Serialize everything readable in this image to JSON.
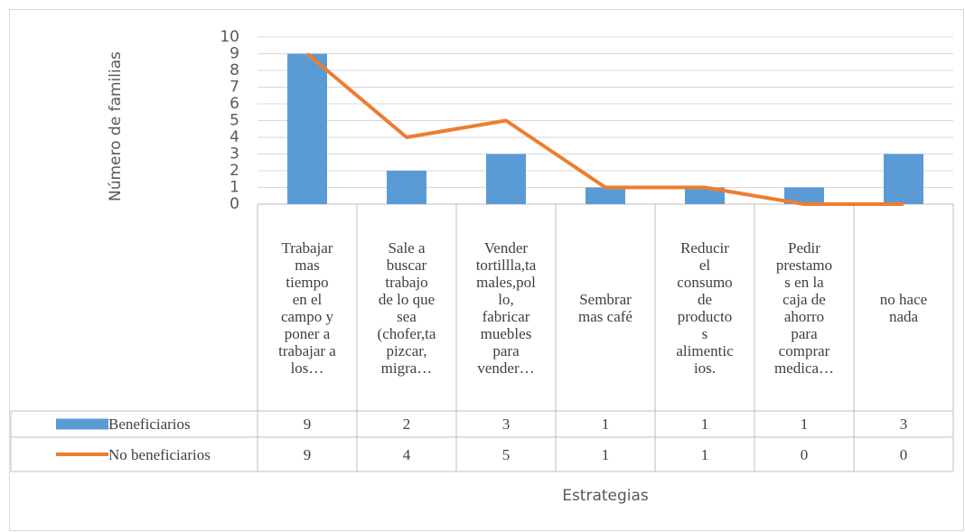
{
  "chart_data": {
    "type": "bar_line",
    "y_label": "Número de familias",
    "x_label": "Estrategias",
    "categories": [
      "Trabajar\nmas\ntiempo\nen el\ncampo y\nponer a\ntrabajar a\nlos…",
      "Sale a\nbuscar\ntrabajo\nde lo que\nsea\n(chofer,ta\npizcar,\nmigra…",
      "Vender\ntortillla,ta\nmales,pol\nlo,\nfabricar\nmuebles\npara\nvender…",
      "Sembrar\nmas café",
      "Reducir\nel\nconsumo\nde\nproducto\ns\nalimentic\nios.",
      "Pedir\nprestamo\ns en la\ncaja de\nahorro\npara\ncomprar\nmedica…",
      "no  hace\nnada"
    ],
    "series": [
      {
        "name": "Beneficiarios",
        "type": "bar",
        "color": "#5b9bd5",
        "values": [
          9,
          2,
          3,
          1,
          1,
          1,
          3
        ]
      },
      {
        "name": "No beneficiarios",
        "type": "line",
        "color": "#ed7d31",
        "values": [
          9,
          4,
          5,
          1,
          1,
          0,
          0
        ]
      }
    ],
    "ylim": [
      0,
      10
    ],
    "yticks": [
      0,
      1,
      2,
      3,
      4,
      5,
      6,
      7,
      8,
      9,
      10
    ],
    "grid": true
  }
}
